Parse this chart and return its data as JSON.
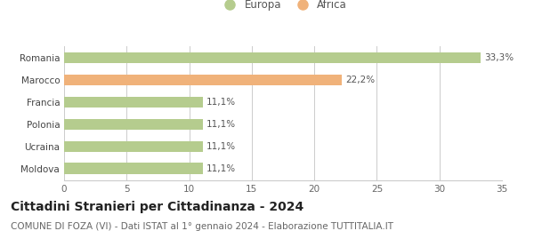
{
  "categories": [
    "Moldova",
    "Ucraina",
    "Polonia",
    "Francia",
    "Marocco",
    "Romania"
  ],
  "values": [
    11.1,
    11.1,
    11.1,
    11.1,
    22.2,
    33.3
  ],
  "labels": [
    "11,1%",
    "11,1%",
    "11,1%",
    "11,1%",
    "22,2%",
    "33,3%"
  ],
  "colors": [
    "#b5cc8e",
    "#b5cc8e",
    "#b5cc8e",
    "#b5cc8e",
    "#f0b27a",
    "#b5cc8e"
  ],
  "legend_items": [
    {
      "label": "Europa",
      "color": "#b5cc8e"
    },
    {
      "label": "Africa",
      "color": "#f0b27a"
    }
  ],
  "xlim": [
    0,
    35
  ],
  "xticks": [
    0,
    5,
    10,
    15,
    20,
    25,
    30,
    35
  ],
  "title": "Cittadini Stranieri per Cittadinanza - 2024",
  "subtitle": "COMUNE DI FOZA (VI) - Dati ISTAT al 1° gennaio 2024 - Elaborazione TUTTITALIA.IT",
  "title_fontsize": 10,
  "subtitle_fontsize": 7.5,
  "label_fontsize": 7.5,
  "tick_fontsize": 7.5,
  "legend_fontsize": 8.5,
  "bar_height": 0.5,
  "background_color": "#ffffff",
  "grid_color": "#cccccc"
}
